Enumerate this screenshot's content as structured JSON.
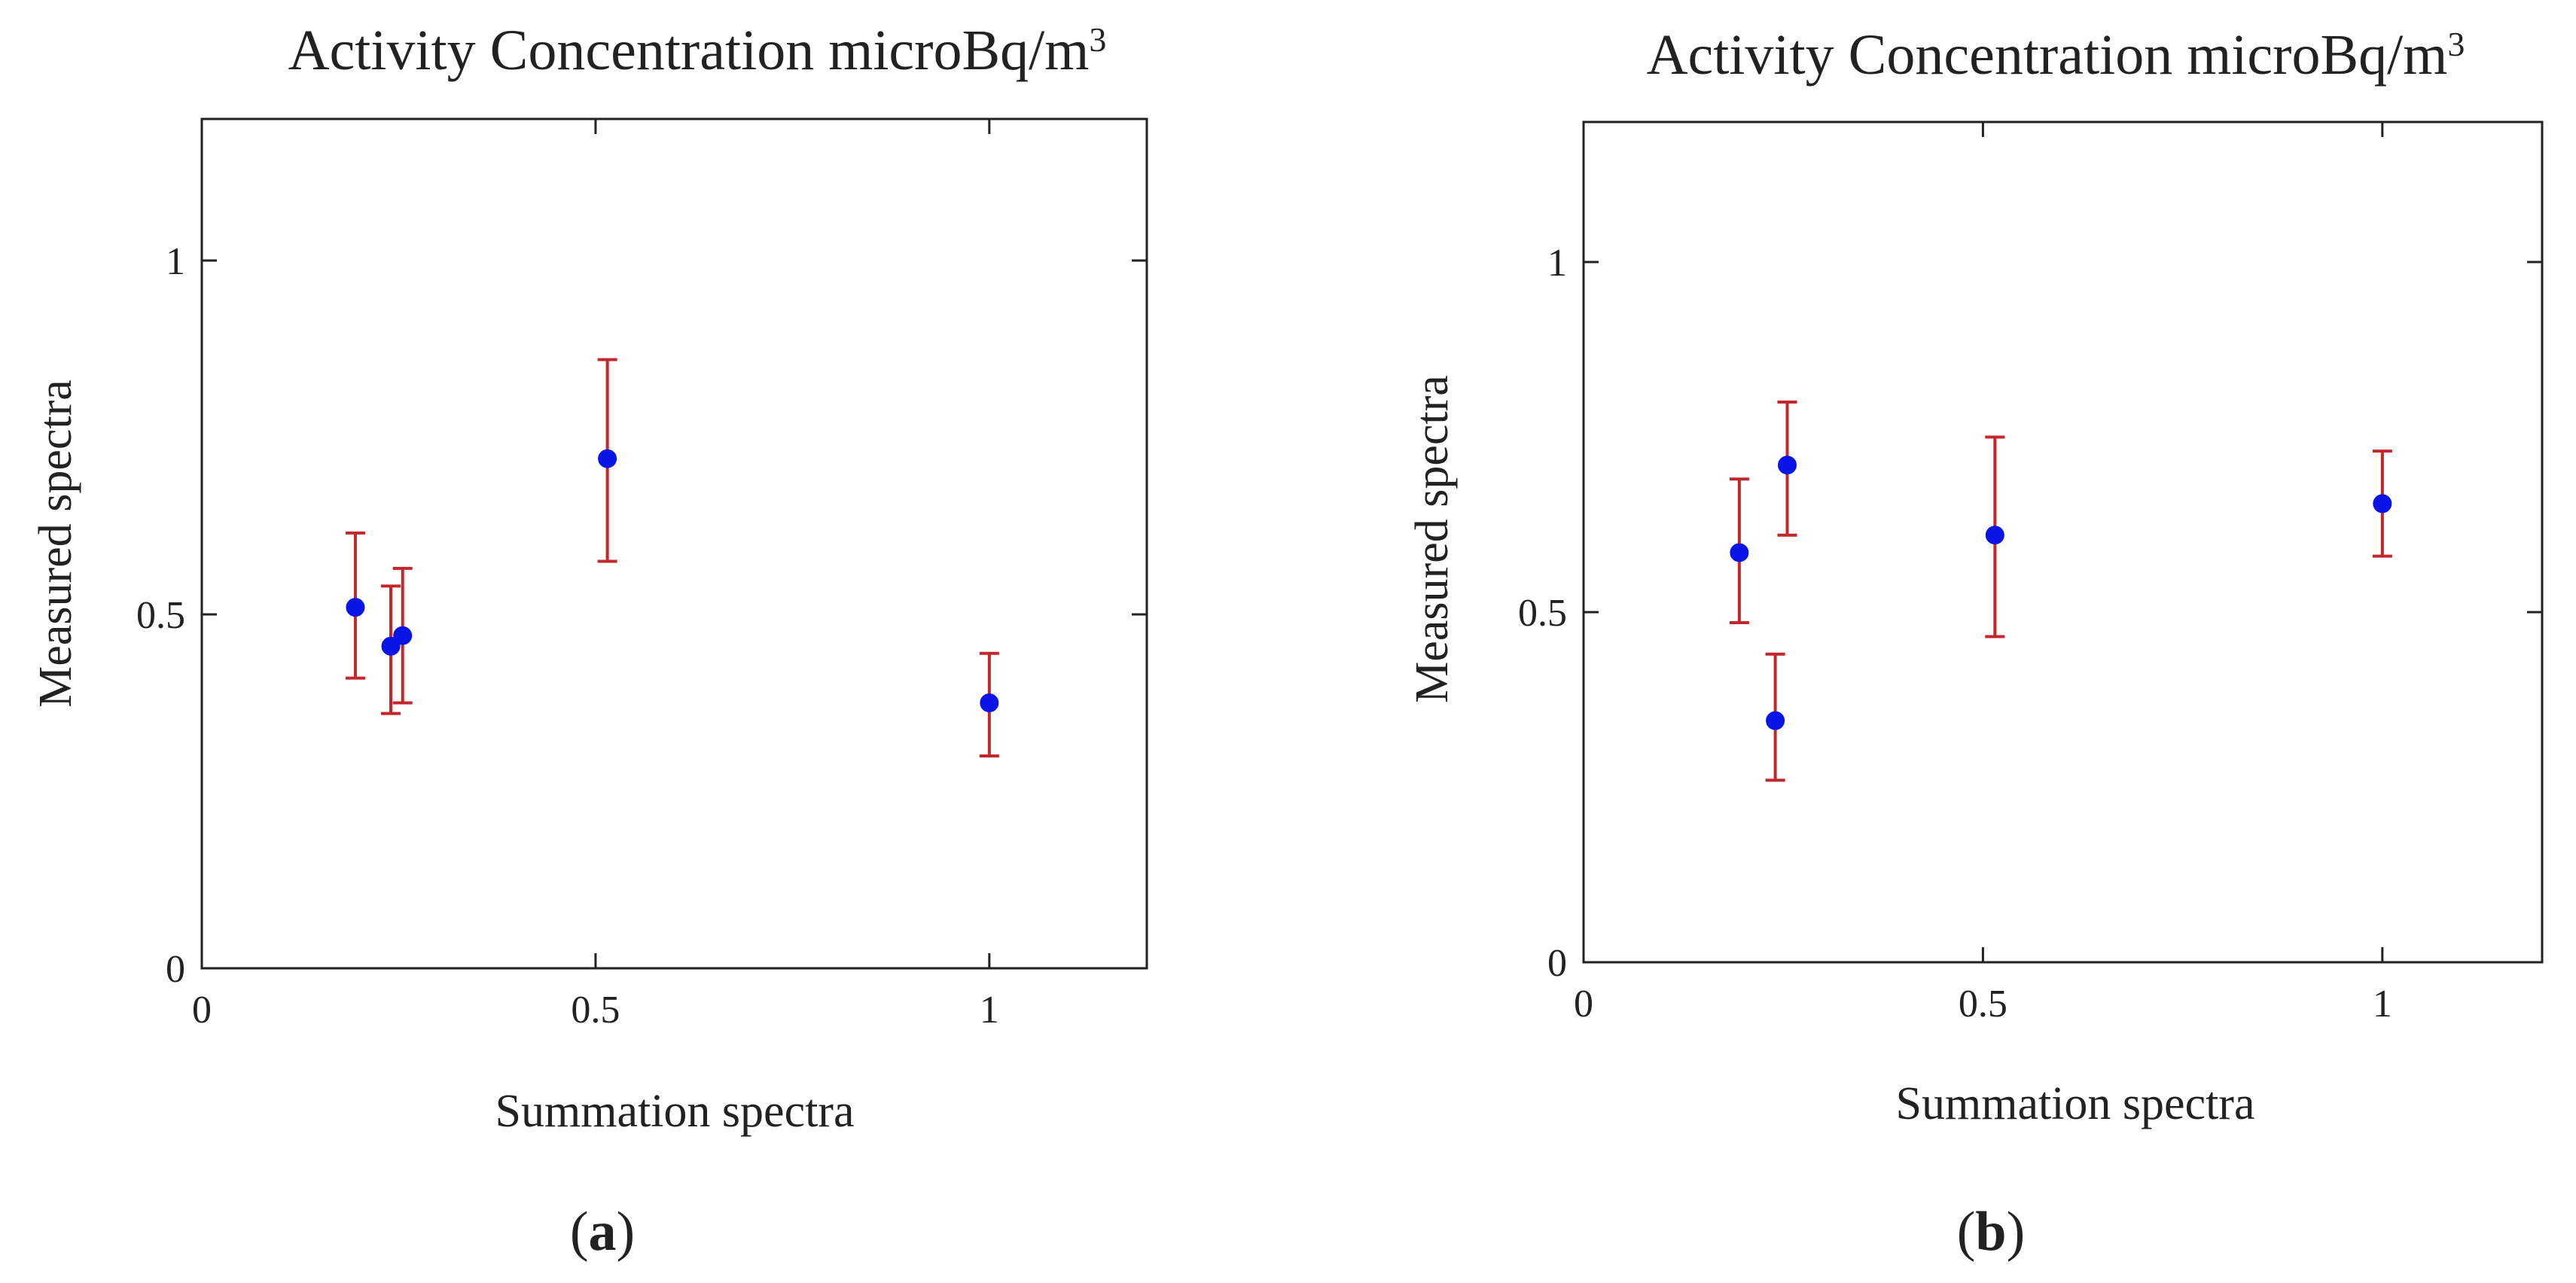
{
  "colors": {
    "point": "#0a14e6",
    "error_bar": "#c0282d",
    "axis": "#222222",
    "background": "#ffffff"
  },
  "chart_data": [
    {
      "type": "scatter",
      "panel_label": "a",
      "title": "Activity Concentration microBq/m",
      "title_superscript": "3",
      "xlabel": "Summation spectra",
      "ylabel": "Measured spectra",
      "xlim": [
        0,
        1.2
      ],
      "ylim": [
        0,
        1.2
      ],
      "x_ticks": [
        0,
        0.5,
        1
      ],
      "y_ticks": [
        0,
        0.5,
        1
      ],
      "x_tick_labels": [
        "0",
        "0.5",
        "1"
      ],
      "y_tick_labels": [
        "0",
        "0.5",
        "1"
      ],
      "grid": false,
      "points": [
        {
          "x": 0.195,
          "y": 0.51,
          "y_low": 0.41,
          "y_high": 0.615
        },
        {
          "x": 0.24,
          "y": 0.455,
          "y_low": 0.36,
          "y_high": 0.54
        },
        {
          "x": 0.255,
          "y": 0.47,
          "y_low": 0.375,
          "y_high": 0.565
        },
        {
          "x": 0.515,
          "y": 0.72,
          "y_low": 0.575,
          "y_high": 0.86
        },
        {
          "x": 1.0,
          "y": 0.375,
          "y_low": 0.3,
          "y_high": 0.445
        }
      ]
    },
    {
      "type": "scatter",
      "panel_label": "b",
      "title": "Activity Concentration microBq/m",
      "title_superscript": "3",
      "xlabel": "Summation spectra",
      "ylabel": "Measured spectra",
      "xlim": [
        0,
        1.2
      ],
      "ylim": [
        0,
        1.2
      ],
      "x_ticks": [
        0,
        0.5,
        1
      ],
      "y_ticks": [
        0,
        0.5,
        1
      ],
      "x_tick_labels": [
        "0",
        "0.5",
        "1"
      ],
      "y_tick_labels": [
        "0",
        "0.5",
        "1"
      ],
      "grid": false,
      "points": [
        {
          "x": 0.195,
          "y": 0.585,
          "y_low": 0.485,
          "y_high": 0.69
        },
        {
          "x": 0.24,
          "y": 0.345,
          "y_low": 0.26,
          "y_high": 0.44
        },
        {
          "x": 0.255,
          "y": 0.71,
          "y_low": 0.61,
          "y_high": 0.8
        },
        {
          "x": 0.515,
          "y": 0.61,
          "y_low": 0.465,
          "y_high": 0.75
        },
        {
          "x": 1.0,
          "y": 0.655,
          "y_low": 0.58,
          "y_high": 0.73
        }
      ]
    }
  ]
}
